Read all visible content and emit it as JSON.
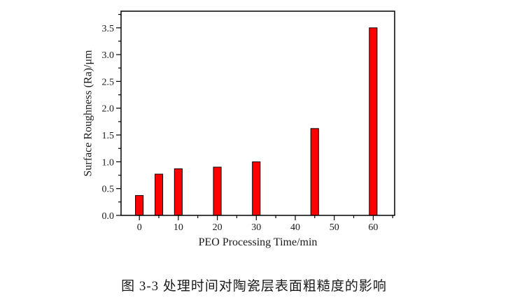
{
  "chart_data": {
    "type": "bar",
    "title": "",
    "xlabel": "PEO Processing Time/min",
    "ylabel": "Surface Roughness (Ra)/μm",
    "x": [
      0,
      5,
      10,
      20,
      30,
      45,
      60
    ],
    "values": [
      0.37,
      0.77,
      0.87,
      0.9,
      1.0,
      1.62,
      3.5
    ],
    "bar_width_units": 2,
    "xlim": [
      -4.7,
      65.5
    ],
    "ylim": [
      0,
      3.81
    ],
    "x_major_ticks": [
      0,
      10,
      20,
      30,
      40,
      50,
      60
    ],
    "x_major_labels": [
      "0",
      "10",
      "20",
      "30",
      "40",
      "50",
      "60"
    ],
    "x_minor_ticks": [
      5,
      15,
      25,
      35,
      45,
      55,
      65
    ],
    "y_major_ticks": [
      0,
      0.5,
      1.0,
      1.5,
      2.0,
      2.5,
      3.0,
      3.5
    ],
    "y_major_labels": [
      "0.0",
      "0.5",
      "1.0",
      "1.5",
      "2.0",
      "2.5",
      "3.0",
      "3.5"
    ],
    "y_minor_ticks": [
      0.25,
      0.75,
      1.25,
      1.75,
      2.25,
      2.75,
      3.25,
      3.75
    ],
    "grid": false,
    "legend": null,
    "colors": {
      "bar_fill": "#ff0000",
      "bar_stroke": "#000000",
      "axis": "#000000",
      "text": "#1a1a1a",
      "background": "#ffffff"
    }
  },
  "caption": {
    "text": "图  3-3  处理时间对陶瓷层表面粗糙度的影响"
  }
}
